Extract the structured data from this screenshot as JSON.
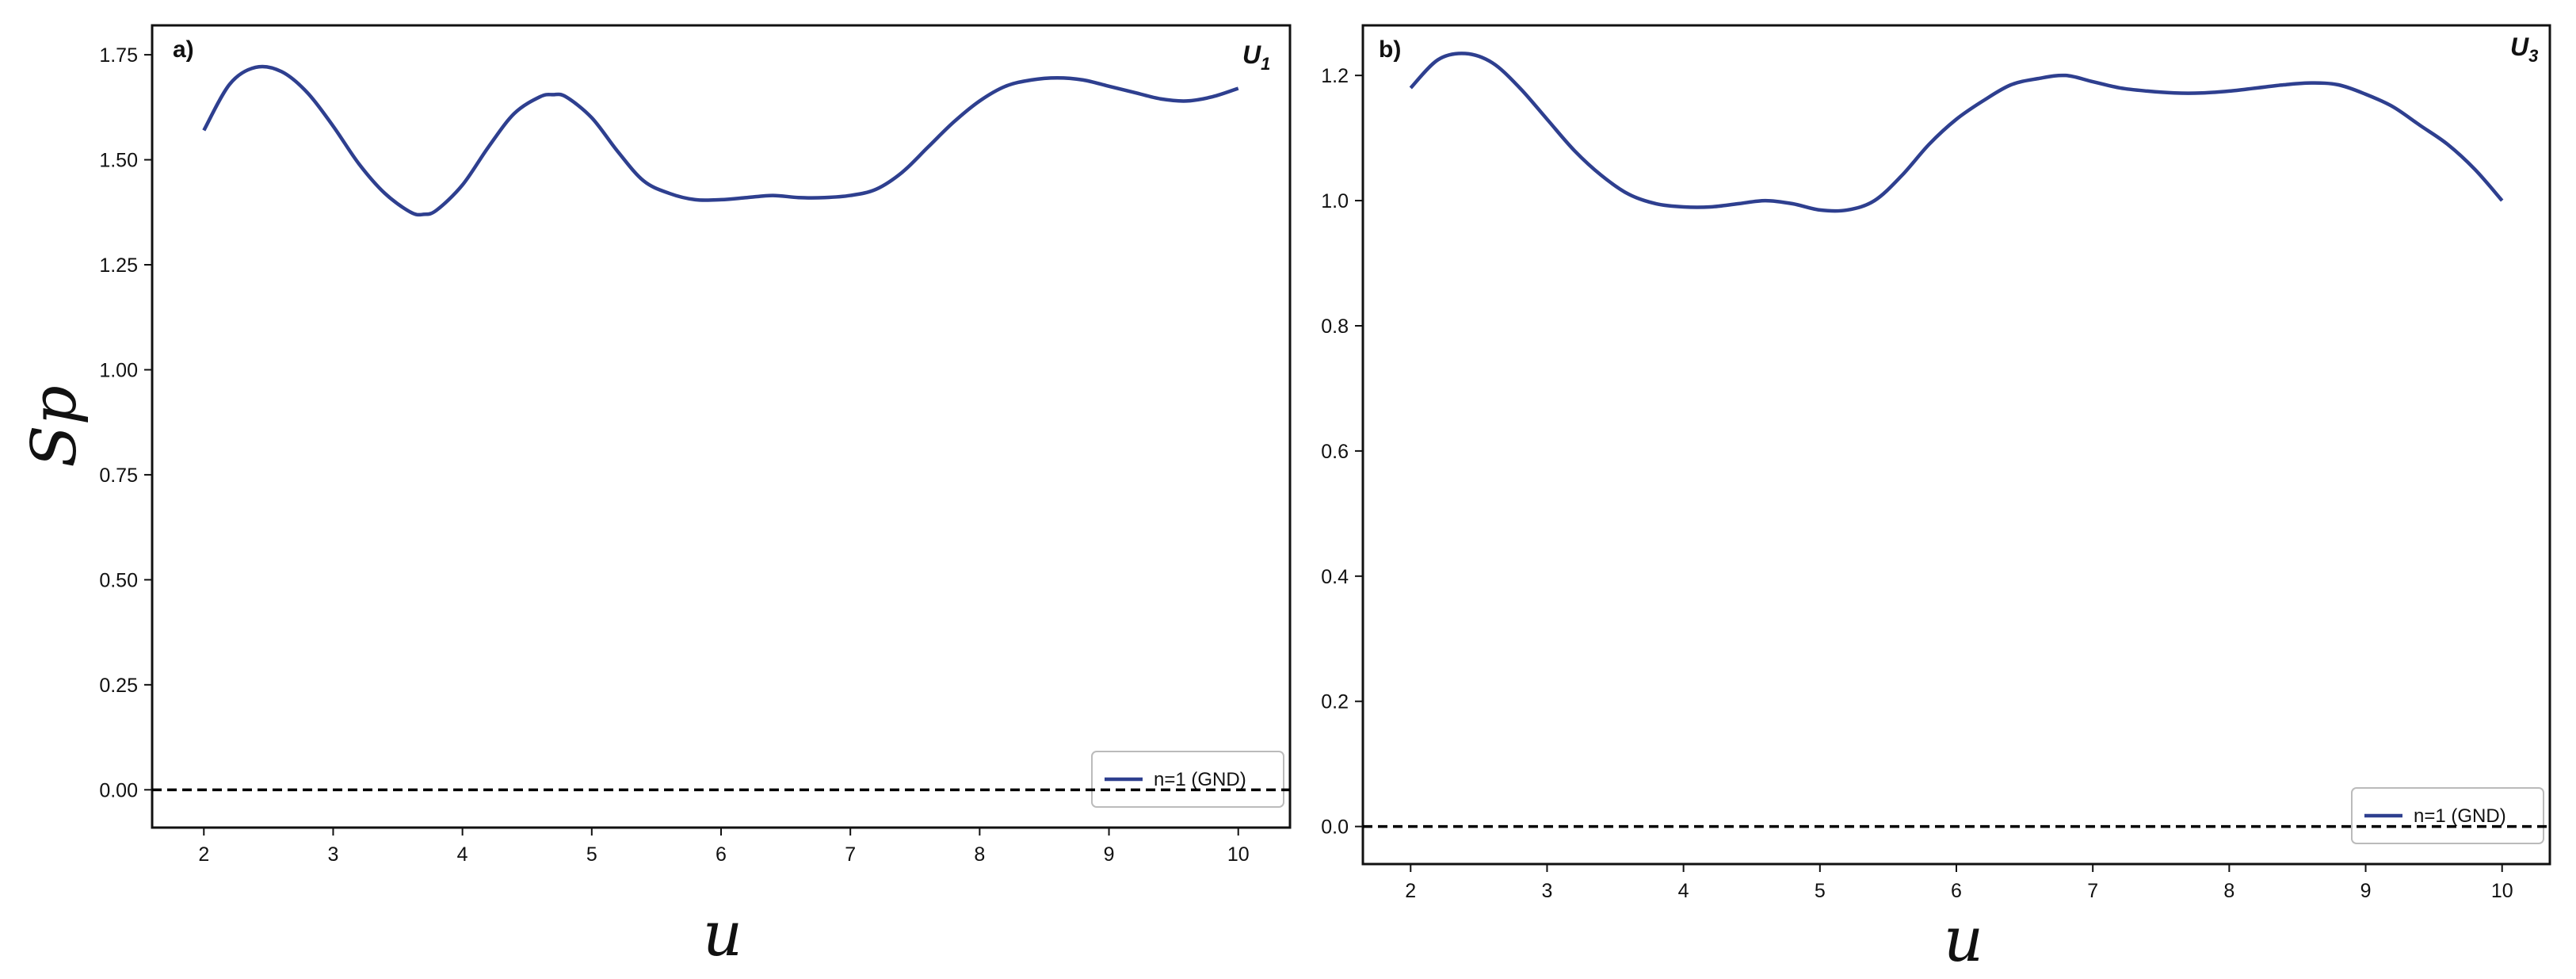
{
  "chart_data": [
    {
      "type": "line",
      "panel_label": "a)",
      "corner_label": "U",
      "corner_label_sub": "1",
      "xlabel": "u",
      "ylabel": "Sp",
      "xlim": [
        1.6,
        10.4
      ],
      "ylim": [
        -0.09,
        1.82
      ],
      "xticks": [
        2,
        3,
        4,
        5,
        6,
        7,
        8,
        9,
        10
      ],
      "yticks": [
        0.0,
        0.25,
        0.5,
        0.75,
        1.0,
        1.25,
        1.5,
        1.75
      ],
      "ytick_labels": [
        "0.00",
        "0.25",
        "0.50",
        "0.75",
        "1.00",
        "1.25",
        "1.50",
        "1.75"
      ],
      "legend_position": "lower-right",
      "series": [
        {
          "name": "n=1  (GND)",
          "color": "#2e3f8f",
          "x": [
            2.0,
            2.2,
            2.4,
            2.6,
            2.8,
            3.0,
            3.2,
            3.4,
            3.6,
            3.7,
            3.8,
            4.0,
            4.2,
            4.4,
            4.6,
            4.7,
            4.8,
            5.0,
            5.2,
            5.4,
            5.6,
            5.8,
            6.0,
            6.2,
            6.4,
            6.6,
            6.8,
            7.0,
            7.2,
            7.4,
            7.6,
            7.8,
            8.0,
            8.2,
            8.4,
            8.6,
            8.8,
            9.0,
            9.2,
            9.4,
            9.6,
            9.8,
            10.0
          ],
          "y": [
            1.57,
            1.68,
            1.72,
            1.71,
            1.66,
            1.58,
            1.49,
            1.42,
            1.375,
            1.37,
            1.38,
            1.44,
            1.53,
            1.61,
            1.65,
            1.655,
            1.65,
            1.6,
            1.52,
            1.45,
            1.42,
            1.405,
            1.405,
            1.41,
            1.415,
            1.41,
            1.41,
            1.415,
            1.43,
            1.47,
            1.53,
            1.59,
            1.64,
            1.675,
            1.69,
            1.695,
            1.69,
            1.675,
            1.66,
            1.645,
            1.64,
            1.65,
            1.67
          ]
        },
        {
          "name": "",
          "color": "#000000",
          "style": "dashed",
          "x": [
            1.6,
            10.4
          ],
          "y": [
            0.0,
            0.0
          ]
        }
      ]
    },
    {
      "type": "line",
      "panel_label": "b)",
      "corner_label": "U",
      "corner_label_sub": "3",
      "xlabel": "u",
      "ylabel": "",
      "xlim": [
        1.65,
        10.35
      ],
      "ylim": [
        -0.06,
        1.28
      ],
      "xticks": [
        2,
        3,
        4,
        5,
        6,
        7,
        8,
        9,
        10
      ],
      "yticks": [
        0.0,
        0.2,
        0.4,
        0.6,
        0.8,
        1.0,
        1.2
      ],
      "ytick_labels": [
        "0.0",
        "0.2",
        "0.4",
        "0.6",
        "0.8",
        "1.0",
        "1.2"
      ],
      "legend_position": "lower-right",
      "series": [
        {
          "name": "n=1 (GND)",
          "color": "#2e3f8f",
          "x": [
            2.0,
            2.2,
            2.4,
            2.6,
            2.8,
            3.0,
            3.2,
            3.4,
            3.6,
            3.8,
            4.0,
            4.2,
            4.4,
            4.6,
            4.8,
            5.0,
            5.2,
            5.4,
            5.6,
            5.8,
            6.0,
            6.2,
            6.4,
            6.6,
            6.8,
            7.0,
            7.2,
            7.4,
            7.6,
            7.8,
            8.0,
            8.2,
            8.4,
            8.6,
            8.8,
            9.0,
            9.2,
            9.4,
            9.6,
            9.8,
            10.0
          ],
          "y": [
            1.18,
            1.225,
            1.235,
            1.22,
            1.18,
            1.13,
            1.08,
            1.04,
            1.01,
            0.995,
            0.99,
            0.99,
            0.995,
            1.0,
            0.995,
            0.985,
            0.985,
            1.0,
            1.04,
            1.09,
            1.13,
            1.16,
            1.185,
            1.195,
            1.2,
            1.19,
            1.18,
            1.175,
            1.172,
            1.172,
            1.175,
            1.18,
            1.185,
            1.188,
            1.185,
            1.17,
            1.15,
            1.12,
            1.09,
            1.05,
            1.0
          ]
        },
        {
          "name": "",
          "color": "#000000",
          "style": "dashed",
          "x": [
            1.65,
            10.35
          ],
          "y": [
            0.0,
            0.0
          ]
        }
      ]
    }
  ]
}
